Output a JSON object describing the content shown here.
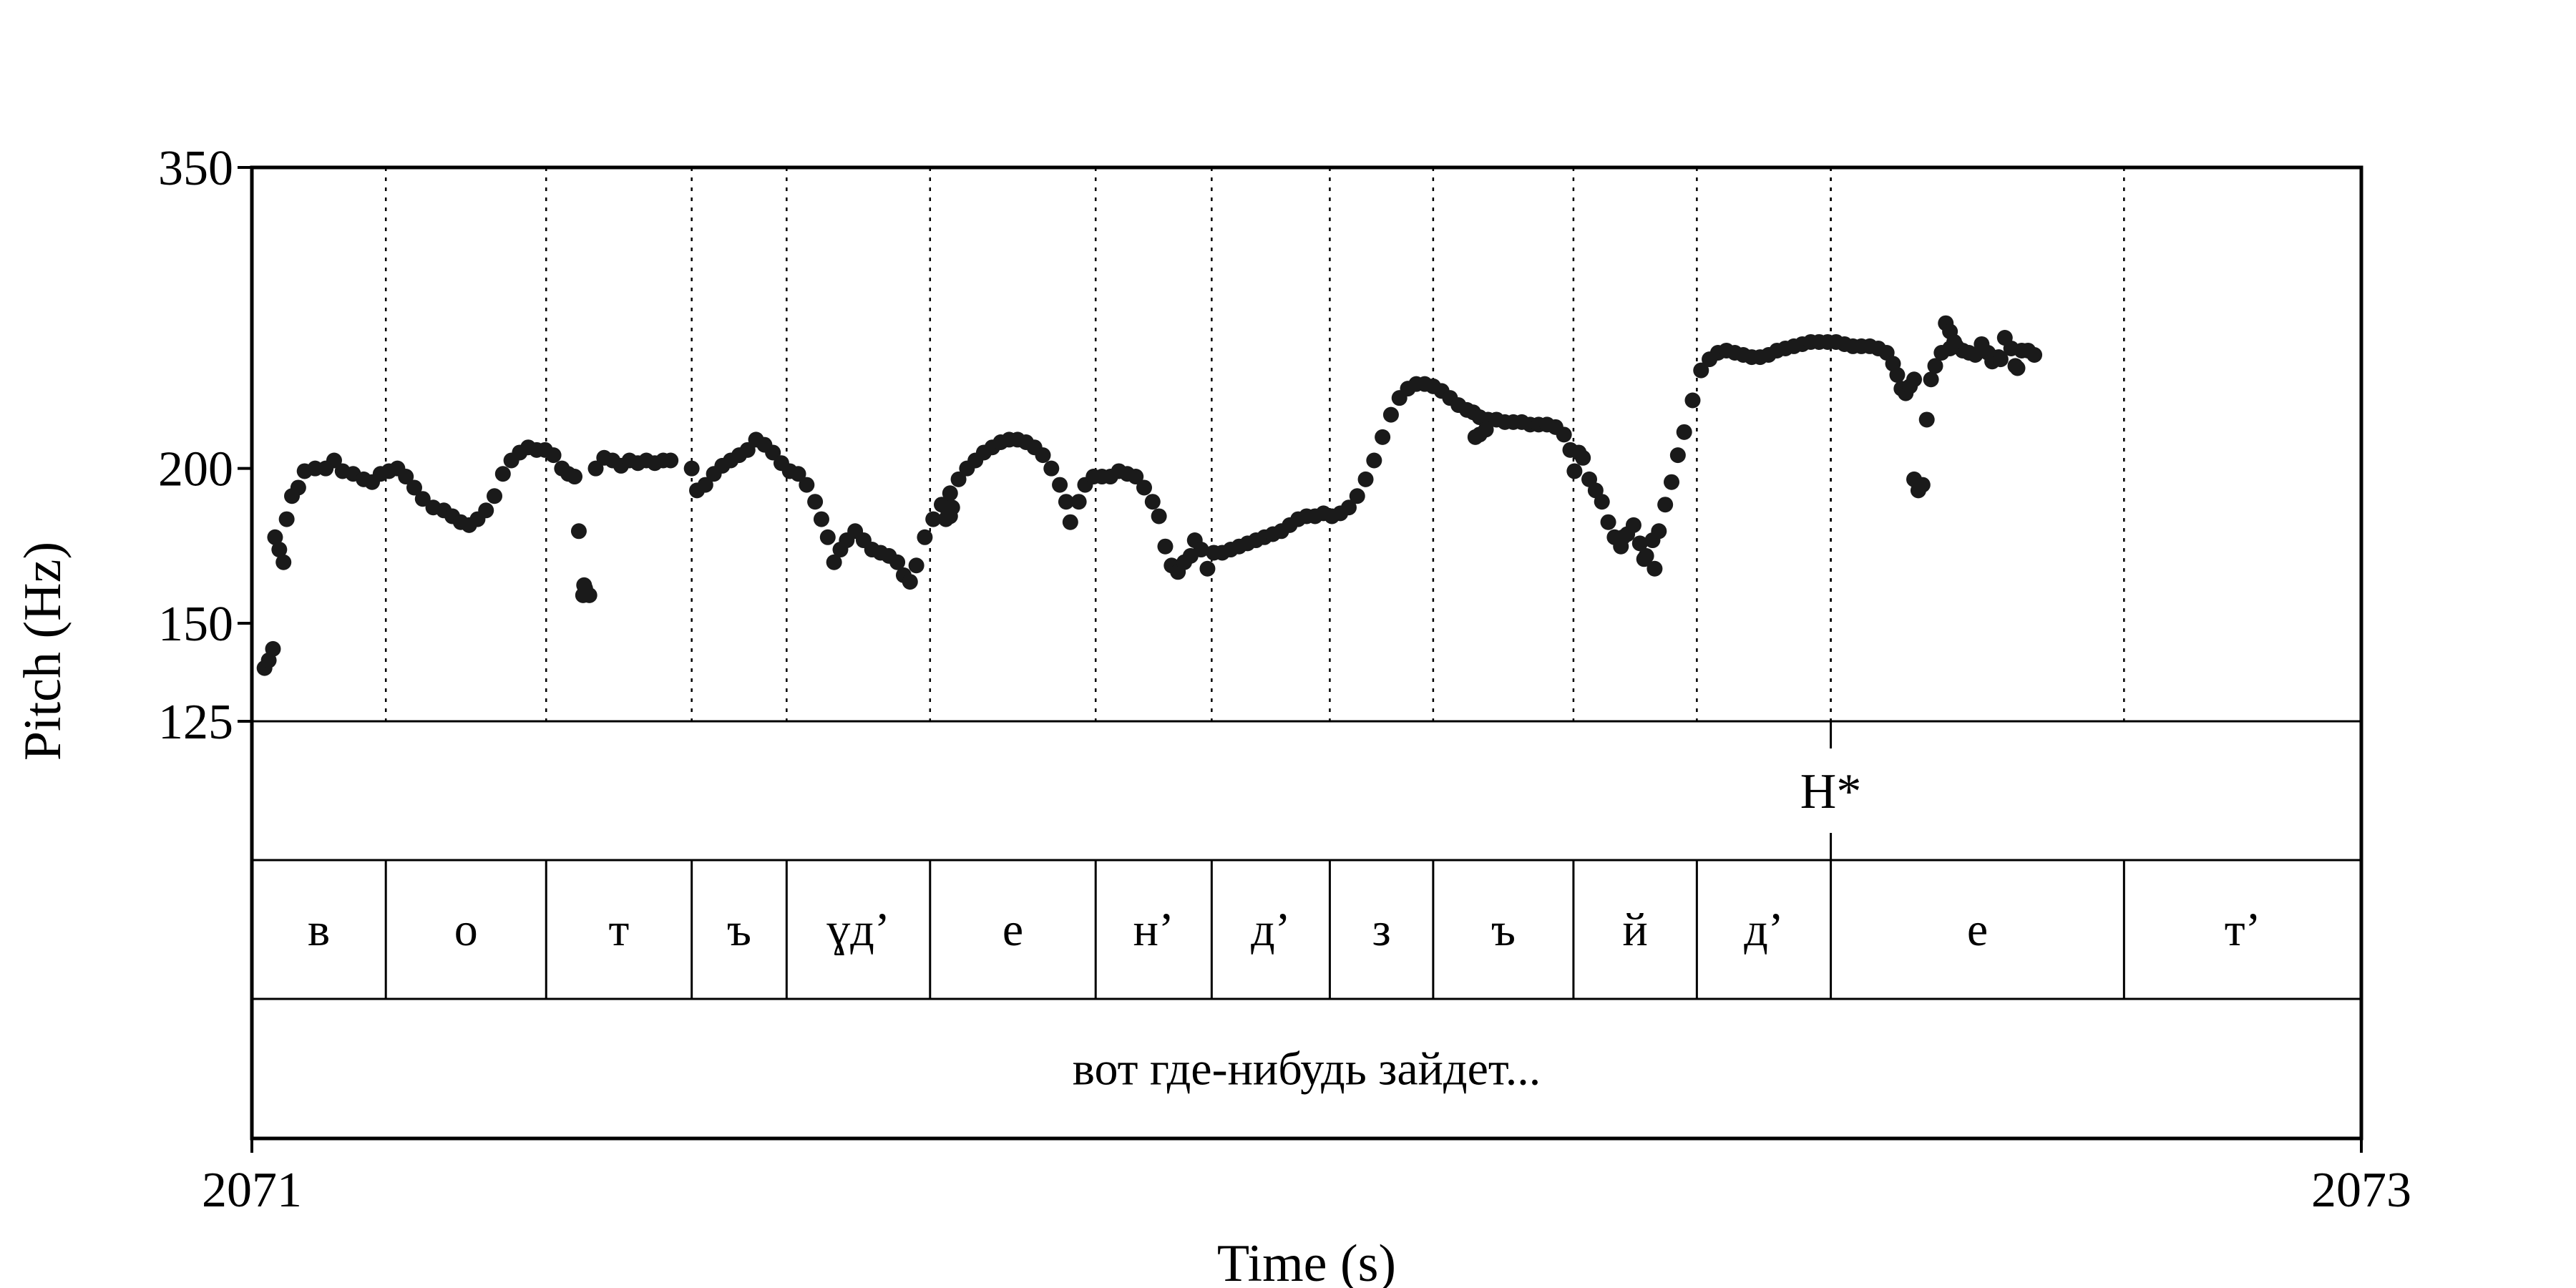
{
  "chart_data": {
    "type": "scatter",
    "xlabel": "Time (s)",
    "ylabel": "Pitch (Hz)",
    "xlim": [
      2071,
      2073
    ],
    "ylim": [
      125,
      350
    ],
    "y_scale": "log",
    "x_ticks": [
      "2071",
      "2073"
    ],
    "y_ticks": [
      {
        "value": 125,
        "label": "125"
      },
      {
        "value": 150,
        "label": "150"
      },
      {
        "value": 200,
        "label": "200"
      },
      {
        "value": 350,
        "label": "350"
      }
    ],
    "marker_color": "#1a1a1a",
    "grid": "dotted vertical lines at segment boundaries",
    "pitch_contour": [
      [
        2071.012,
        138
      ],
      [
        2071.016,
        140
      ],
      [
        2071.02,
        143
      ],
      [
        2071.022,
        176
      ],
      [
        2071.026,
        172
      ],
      [
        2071.03,
        168
      ],
      [
        2071.033,
        182
      ],
      [
        2071.038,
        190
      ],
      [
        2071.044,
        193
      ],
      [
        2071.05,
        199
      ],
      [
        2071.06,
        200
      ],
      [
        2071.07,
        200
      ],
      [
        2071.078,
        203
      ],
      [
        2071.086,
        199
      ],
      [
        2071.096,
        198
      ],
      [
        2071.106,
        196
      ],
      [
        2071.114,
        195
      ],
      [
        2071.122,
        198
      ],
      [
        2071.13,
        199
      ],
      [
        2071.138,
        200
      ],
      [
        2071.146,
        197
      ],
      [
        2071.154,
        193
      ],
      [
        2071.162,
        189
      ],
      [
        2071.172,
        186
      ],
      [
        2071.182,
        185
      ],
      [
        2071.19,
        183
      ],
      [
        2071.198,
        181
      ],
      [
        2071.206,
        180
      ],
      [
        2071.214,
        182
      ],
      [
        2071.222,
        185
      ],
      [
        2071.23,
        190
      ],
      [
        2071.238,
        198
      ],
      [
        2071.246,
        203
      ],
      [
        2071.254,
        206
      ],
      [
        2071.262,
        208
      ],
      [
        2071.27,
        207
      ],
      [
        2071.278,
        207
      ],
      [
        2071.286,
        205
      ],
      [
        2071.294,
        200
      ],
      [
        2071.3,
        198
      ],
      [
        2071.306,
        197
      ],
      [
        2071.31,
        178
      ],
      [
        2071.316,
        160
      ],
      [
        2071.32,
        158
      ],
      [
        2071.326,
        200
      ],
      [
        2071.334,
        204
      ],
      [
        2071.342,
        203
      ],
      [
        2071.35,
        201
      ],
      [
        2071.358,
        203
      ],
      [
        2071.366,
        202
      ],
      [
        2071.374,
        203
      ],
      [
        2071.382,
        202
      ],
      [
        2071.39,
        203
      ],
      [
        2071.397,
        203
      ],
      [
        2071.417,
        200
      ],
      [
        2071.422,
        192
      ],
      [
        2071.43,
        194
      ],
      [
        2071.438,
        198
      ],
      [
        2071.446,
        201
      ],
      [
        2071.454,
        203
      ],
      [
        2071.462,
        205
      ],
      [
        2071.47,
        207
      ],
      [
        2071.478,
        211
      ],
      [
        2071.486,
        209
      ],
      [
        2071.494,
        206
      ],
      [
        2071.502,
        202
      ],
      [
        2071.51,
        199
      ],
      [
        2071.518,
        198
      ],
      [
        2071.526,
        194
      ],
      [
        2071.534,
        188
      ],
      [
        2071.54,
        182
      ],
      [
        2071.546,
        176
      ],
      [
        2071.552,
        168
      ],
      [
        2071.558,
        172
      ],
      [
        2071.564,
        175
      ],
      [
        2071.572,
        178
      ],
      [
        2071.58,
        175
      ],
      [
        2071.588,
        172
      ],
      [
        2071.596,
        171
      ],
      [
        2071.604,
        170
      ],
      [
        2071.612,
        168
      ],
      [
        2071.618,
        164
      ],
      [
        2071.624,
        162
      ],
      [
        2071.63,
        167
      ],
      [
        2071.638,
        176
      ],
      [
        2071.646,
        182
      ],
      [
        2071.654,
        187
      ],
      [
        2071.662,
        191
      ],
      [
        2071.67,
        196
      ],
      [
        2071.678,
        200
      ],
      [
        2071.686,
        203
      ],
      [
        2071.694,
        206
      ],
      [
        2071.702,
        208
      ],
      [
        2071.71,
        210
      ],
      [
        2071.718,
        211
      ],
      [
        2071.726,
        211
      ],
      [
        2071.734,
        210
      ],
      [
        2071.742,
        208
      ],
      [
        2071.75,
        205
      ],
      [
        2071.758,
        200
      ],
      [
        2071.766,
        194
      ],
      [
        2071.772,
        188
      ],
      [
        2071.776,
        181
      ],
      [
        2071.784,
        188
      ],
      [
        2071.79,
        194
      ],
      [
        2071.798,
        197
      ],
      [
        2071.806,
        197
      ],
      [
        2071.814,
        197
      ],
      [
        2071.822,
        199
      ],
      [
        2071.83,
        198
      ],
      [
        2071.838,
        197
      ],
      [
        2071.846,
        193
      ],
      [
        2071.854,
        188
      ],
      [
        2071.86,
        183
      ],
      [
        2071.866,
        173
      ],
      [
        2071.872,
        167
      ],
      [
        2071.878,
        165
      ],
      [
        2071.884,
        168
      ],
      [
        2071.89,
        170
      ],
      [
        2071.894,
        175
      ],
      [
        2071.9,
        172
      ],
      [
        2071.906,
        166
      ],
      [
        2071.912,
        171
      ],
      [
        2071.92,
        171
      ],
      [
        2071.928,
        172
      ],
      [
        2071.936,
        173
      ],
      [
        2071.944,
        174
      ],
      [
        2071.952,
        175
      ],
      [
        2071.96,
        176
      ],
      [
        2071.968,
        177
      ],
      [
        2071.976,
        178
      ],
      [
        2071.984,
        180
      ],
      [
        2071.992,
        182
      ],
      [
        2072.0,
        183
      ],
      [
        2072.008,
        183
      ],
      [
        2072.016,
        184
      ],
      [
        2072.024,
        183
      ],
      [
        2072.032,
        184
      ],
      [
        2072.04,
        186
      ],
      [
        2072.048,
        190
      ],
      [
        2072.056,
        196
      ],
      [
        2072.064,
        203
      ],
      [
        2072.072,
        212
      ],
      [
        2072.08,
        221
      ],
      [
        2072.088,
        228
      ],
      [
        2072.096,
        232
      ],
      [
        2072.104,
        234
      ],
      [
        2072.112,
        234
      ],
      [
        2072.12,
        233
      ],
      [
        2072.128,
        231
      ],
      [
        2072.136,
        228
      ],
      [
        2072.144,
        225
      ],
      [
        2072.152,
        223
      ],
      [
        2072.158,
        222
      ],
      [
        2072.164,
        220
      ],
      [
        2072.172,
        219
      ],
      [
        2072.18,
        219
      ],
      [
        2072.188,
        218
      ],
      [
        2072.196,
        218
      ],
      [
        2072.204,
        218
      ],
      [
        2072.212,
        217
      ],
      [
        2072.22,
        217
      ],
      [
        2072.228,
        217
      ],
      [
        2072.236,
        216
      ],
      [
        2072.244,
        213
      ],
      [
        2072.25,
        207
      ],
      [
        2072.254,
        199
      ],
      [
        2072.258,
        206
      ],
      [
        2072.262,
        204
      ],
      [
        2072.268,
        196
      ],
      [
        2072.274,
        192
      ],
      [
        2072.28,
        188
      ],
      [
        2072.286,
        181
      ],
      [
        2072.292,
        176
      ],
      [
        2072.298,
        173
      ],
      [
        2072.304,
        177
      ],
      [
        2072.31,
        180
      ],
      [
        2072.316,
        174
      ],
      [
        2072.322,
        170
      ],
      [
        2072.328,
        175
      ],
      [
        2072.334,
        178
      ],
      [
        2072.34,
        187
      ],
      [
        2072.346,
        195
      ],
      [
        2072.352,
        205
      ],
      [
        2072.358,
        214
      ],
      [
        2072.366,
        227
      ],
      [
        2072.374,
        240
      ],
      [
        2072.382,
        245
      ],
      [
        2072.39,
        248
      ],
      [
        2072.398,
        249
      ],
      [
        2072.406,
        248
      ],
      [
        2072.414,
        247
      ],
      [
        2072.422,
        246
      ],
      [
        2072.43,
        246
      ],
      [
        2072.438,
        247
      ],
      [
        2072.446,
        249
      ],
      [
        2072.454,
        250
      ],
      [
        2072.462,
        251
      ],
      [
        2072.47,
        252
      ],
      [
        2072.478,
        253
      ],
      [
        2072.486,
        253
      ],
      [
        2072.494,
        253
      ],
      [
        2072.502,
        253
      ],
      [
        2072.51,
        252
      ],
      [
        2072.518,
        251
      ],
      [
        2072.526,
        251
      ],
      [
        2072.534,
        251
      ],
      [
        2072.542,
        250
      ],
      [
        2072.55,
        248
      ],
      [
        2072.556,
        243
      ],
      [
        2072.56,
        238
      ],
      [
        2072.564,
        232
      ],
      [
        2072.568,
        230
      ],
      [
        2072.572,
        233
      ],
      [
        2072.576,
        236
      ],
      [
        2072.58,
        192
      ],
      [
        2072.584,
        194
      ],
      [
        2072.588,
        219
      ],
      [
        2072.592,
        236
      ],
      [
        2072.596,
        242
      ],
      [
        2072.602,
        248
      ],
      [
        2072.606,
        262
      ],
      [
        2072.61,
        258
      ],
      [
        2072.616,
        251
      ],
      [
        2072.622,
        249
      ],
      [
        2072.628,
        248
      ],
      [
        2072.634,
        247
      ],
      [
        2072.64,
        252
      ],
      [
        2072.646,
        248
      ],
      [
        2072.65,
        244
      ],
      [
        2072.656,
        246
      ],
      [
        2072.662,
        255
      ],
      [
        2072.668,
        250
      ],
      [
        2072.672,
        242
      ],
      [
        2072.678,
        249
      ],
      [
        2072.684,
        249
      ],
      [
        2072.69,
        247
      ]
    ],
    "pitch_outliers": [
      [
        2071.314,
        158
      ],
      [
        2071.315,
        161
      ],
      [
        2071.658,
        182
      ],
      [
        2071.66,
        185
      ],
      [
        2071.662,
        183
      ],
      [
        2071.664,
        186
      ],
      [
        2072.16,
        212
      ],
      [
        2072.164,
        213
      ],
      [
        2072.17,
        215
      ],
      [
        2072.3,
        176
      ],
      [
        2072.32,
        169
      ],
      [
        2072.33,
        166
      ],
      [
        2072.576,
        196
      ],
      [
        2072.61,
        250
      ],
      [
        2072.614,
        253
      ],
      [
        2072.658,
        245
      ],
      [
        2072.674,
        241
      ]
    ],
    "tiers": {
      "tones": {
        "boundaries": [
          2072.497
        ],
        "labels": [
          {
            "time": 2072.497,
            "text": "H*"
          }
        ]
      },
      "segments": {
        "boundaries": [
          2071,
          2071.127,
          2071.279,
          2071.417,
          2071.507,
          2071.643,
          2071.8,
          2071.91,
          2072.022,
          2072.12,
          2072.253,
          2072.37,
          2072.497,
          2072.775,
          2073
        ],
        "labels": [
          "в",
          "о",
          "т",
          "ъ",
          "ɣд’",
          "е",
          "н’",
          "д’",
          "з",
          "ъ",
          "й",
          "д’",
          "е",
          "т’"
        ]
      },
      "utterance": {
        "label": "вот где-нибудь зайдет..."
      }
    }
  }
}
